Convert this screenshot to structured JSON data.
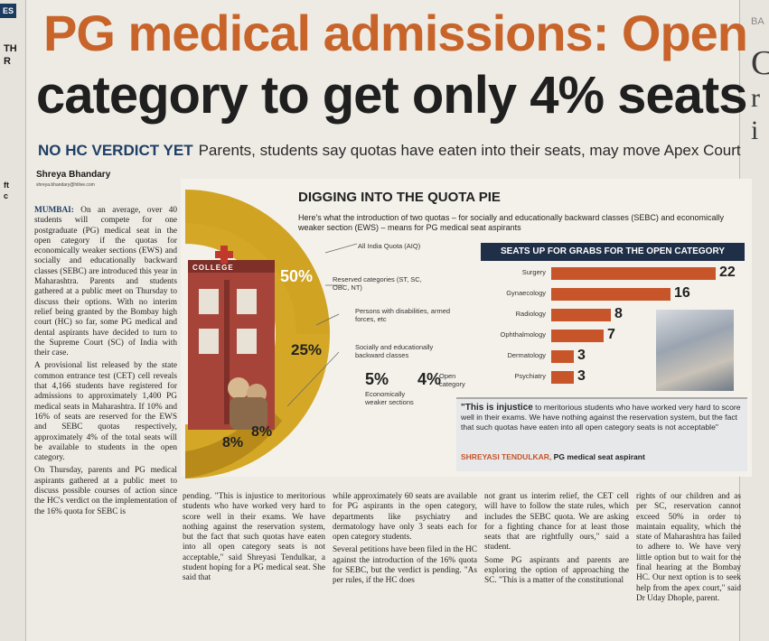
{
  "gutter_left": [
    "ES",
    "TH",
    "R",
    "ft",
    "c"
  ],
  "gutter_right": [
    "BA",
    "C",
    "r",
    "i"
  ],
  "headline": {
    "line1": "PG medical admissions: Open",
    "line2": "category to get only 4% seats"
  },
  "subhead": {
    "label": "NO HC VERDICT YET",
    "text": "Parents, students say quotas have eaten into their seats, may move Apex Court"
  },
  "byline": "Shreya Bhandary",
  "byline_email": "shreya.bhandary@htlive.com",
  "graphic": {
    "title": "DIGGING INTO THE QUOTA PIE",
    "description": "Here's what the introduction of two quotas – for socially and educationally backward classes (SEBC) and economically weaker section (EWS) – means for PG medical seat aspirants",
    "college_sign": "COLLEGE",
    "segments": [
      {
        "label": "All India Quota (AIQ)",
        "value": "50%"
      },
      {
        "label": "Reserved categories (ST, SC, OBC, NT)",
        "value": "25%"
      },
      {
        "label": "Persons with disabilities, armed forces, etc",
        "value": "8%"
      },
      {
        "label": "Socially and educationally backward classes",
        "value": "8%"
      },
      {
        "label": "Economically weaker sections",
        "value": "5%"
      },
      {
        "label": "Open category",
        "value": "4%"
      }
    ],
    "colors": {
      "gold": "#d4a826",
      "dark_gold": "#b88a1a",
      "brick": "#a6443a",
      "bar": "#c8542a",
      "navy": "#1f2f48"
    }
  },
  "chart_data": {
    "type": "bar",
    "title": "SEATS UP FOR GRABS FOR THE OPEN CATEGORY",
    "categories": [
      "Surgery",
      "Gynaecology",
      "Radiology",
      "Ophthalmology",
      "Dermatology",
      "Psychiatry"
    ],
    "values": [
      22,
      16,
      8,
      7,
      3,
      3
    ],
    "xlabel": "",
    "ylabel": ""
  },
  "quote": {
    "lead": "\"This is injustice",
    "text": "to meritorious students who have worked very hard to score well in their exams. We have nothing against the reservation system, but the fact that such quotas have eaten into all open category seats is not acceptable\"",
    "name": "SHREYASI TENDULKAR,",
    "role": "PG medical seat aspirant"
  },
  "body": {
    "dateline": "MUMBAI:",
    "col1_p1": "On an average, over 40 students will compete for one postgraduate (PG) medical seat in the open category if the quotas for economically weaker sections (EWS) and socially and educationally backward classes (SEBC) are introduced this year in Maharashtra. Parents and students gathered at a public meet on Thursday to discuss their options. With no interim relief being granted by the Bombay high court (HC) so far, some PG medical and dental aspirants have decided to turn to the Supreme Court (SC) of India with their case.",
    "col1_p2": "A provisional list released by the state common entrance test (CET) cell reveals that 4,166 students have registered for admissions to approximately 1,400 PG medical seats in Maharashtra. If 10% and 16% of seats are reserved for the EWS and SEBC quotas respectively, approximately 4% of the total seats will be available to students in the open category.",
    "col1_p3": "On Thursday, parents and PG medical aspirants gathered at a public meet to discuss possible courses of action since the HC's verdict on the implementation of the 16% quota for SEBC is",
    "col2": "pending. \"This is injustice to meritorious students who have worked very hard to score well in their exams. We have nothing against the reservation system, but the fact that such quotas have eaten into all open category seats is not acceptable,\" said Shreyasi Tendulkar, a student hoping for a PG medical seat. She said that",
    "col3_p1": "while approximately 60 seats are available for PG aspirants in the open category, departments like psychiatry and dermatology have only 3 seats each for open category students.",
    "col3_p2": "Several petitions have been filed in the HC against the introduction of the 16% quota for SEBC, but the verdict is pending. \"As per rules, if the HC does",
    "col4_p1": "not grant us interim relief, the CET cell will have to follow the state rules, which includes the SEBC quota. We are asking for a fighting chance for at least those seats that are rightfully ours,\" said a student.",
    "col4_p2": "Some PG aspirants and parents are exploring the option of approaching the SC. \"This is a matter of the constitutional",
    "col5_p1": "rights of our children and as per SC, reservation cannot exceed 50% in order to maintain equality, which the state of Maharashtra has failed to adhere to. We have very little option but to wait for the final hearing at the Bombay HC. Our next option is to seek help from the apex court,\" said Dr Uday Dhople, parent."
  }
}
